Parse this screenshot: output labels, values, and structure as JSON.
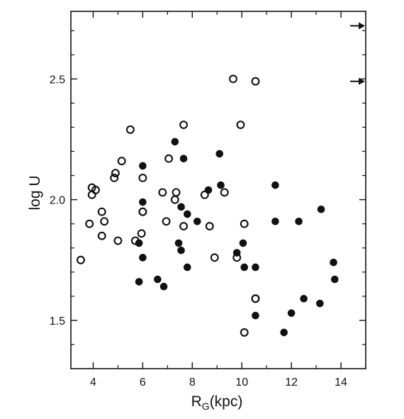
{
  "chart_data": {
    "type": "scatter",
    "title": "",
    "xlabel": "R",
    "xlabel_sub": "G",
    "xlabel_unit": "(kpc)",
    "ylabel": "log U",
    "xlim": [
      3.1,
      15.0
    ],
    "ylim": [
      1.3,
      2.78
    ],
    "x_ticks": [
      4,
      6,
      8,
      10,
      12,
      14
    ],
    "y_ticks": [
      1.5,
      2.0,
      2.5
    ],
    "x_ticks_labels": [
      "4",
      "6",
      "8",
      "10",
      "12",
      "14"
    ],
    "y_ticks_labels": [
      "1.5",
      "2.0",
      "2.5"
    ],
    "grid": false,
    "color": "#111111",
    "series": [
      {
        "marker": "open-circle",
        "x": [
          3.5,
          3.85,
          3.95,
          3.95,
          4.1,
          4.35,
          4.35,
          4.45,
          4.85,
          4.9,
          5.0,
          5.15,
          5.5,
          5.7,
          5.95,
          6.0,
          6.0,
          6.0,
          6.8,
          6.95,
          7.05,
          7.3,
          7.35,
          7.65,
          7.65,
          8.5,
          8.7,
          8.9,
          9.3,
          9.65,
          9.8,
          9.95,
          10.1,
          10.1,
          10.55,
          10.55,
          10.55
        ],
        "y": [
          1.75,
          1.9,
          2.02,
          2.05,
          2.04,
          1.95,
          1.85,
          1.91,
          2.09,
          2.11,
          1.83,
          2.16,
          2.29,
          1.83,
          1.86,
          1.95,
          2.09,
          1.95,
          2.03,
          1.91,
          2.17,
          2.0,
          2.03,
          1.89,
          2.31,
          2.02,
          1.89,
          1.76,
          2.03,
          2.5,
          1.76,
          2.31,
          1.9,
          1.45,
          2.49,
          1.59,
          1.59
        ]
      },
      {
        "marker": "filled-circle",
        "x": [
          5.85,
          5.85,
          6.0,
          6.0,
          6.0,
          6.6,
          6.85,
          7.3,
          7.45,
          7.55,
          7.55,
          7.65,
          7.8,
          7.8,
          8.2,
          8.65,
          9.1,
          9.15,
          9.8,
          10.05,
          10.1,
          10.55,
          10.55,
          11.35,
          11.35,
          11.7,
          12.0,
          12.3,
          12.5,
          13.15,
          13.2,
          13.7,
          13.75
        ],
        "y": [
          1.82,
          1.66,
          2.14,
          1.99,
          1.76,
          1.67,
          1.64,
          2.24,
          1.82,
          1.97,
          1.79,
          2.17,
          1.94,
          1.72,
          1.91,
          2.04,
          2.19,
          2.06,
          1.78,
          1.82,
          1.72,
          1.72,
          1.52,
          2.06,
          1.91,
          1.45,
          1.53,
          1.91,
          1.59,
          1.57,
          1.96,
          1.74,
          1.67
        ]
      }
    ],
    "arrows": [
      {
        "y": 2.72,
        "direction": "right",
        "side": "right"
      },
      {
        "y": 2.49,
        "direction": "right",
        "side": "right"
      }
    ]
  }
}
